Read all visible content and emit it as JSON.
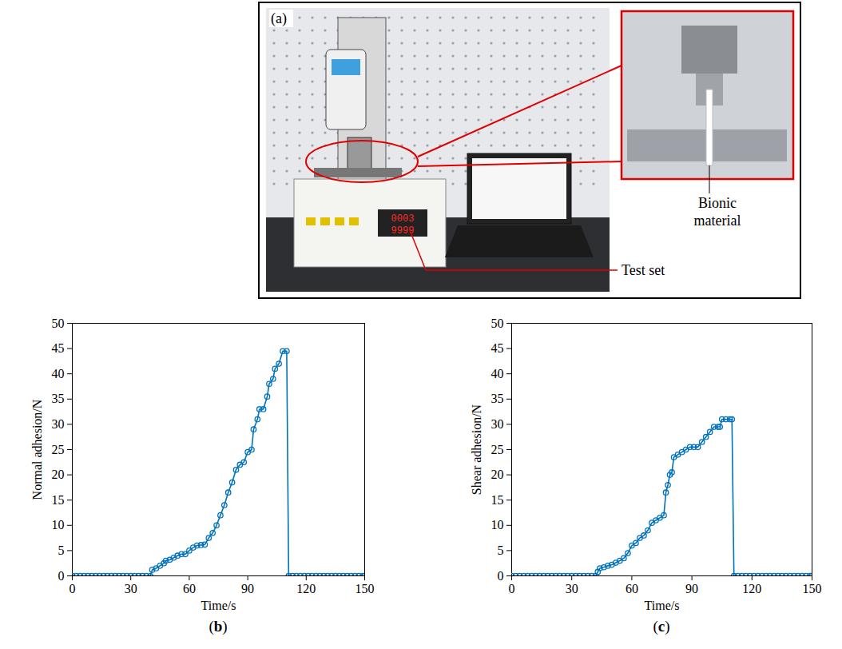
{
  "panel_a": {
    "label": "(a)",
    "annotations": [
      "Bionic material",
      "Test set"
    ],
    "display": [
      "0003",
      "9999"
    ]
  },
  "chart_data": [
    {
      "type": "line",
      "title": "(b)",
      "x_label": "Time/s",
      "y_label": "Normal adhesion/N",
      "xlim": [
        0,
        150
      ],
      "xticks": [
        0,
        30,
        60,
        90,
        120,
        150
      ],
      "ylim": [
        0,
        50
      ],
      "yticks": [
        0,
        5,
        10,
        15,
        20,
        25,
        30,
        35,
        40,
        45,
        50
      ],
      "grid": false,
      "color": "#0072bd",
      "marker": "circle",
      "line_style": "solid",
      "x": [
        0,
        2,
        4,
        6,
        8,
        10,
        12,
        14,
        16,
        18,
        20,
        22,
        24,
        26,
        28,
        30,
        32,
        34,
        36,
        38,
        40,
        41,
        43,
        45,
        47,
        48,
        50,
        52,
        54,
        56,
        58,
        60,
        62,
        64,
        66,
        68,
        70,
        72,
        74,
        76,
        78,
        80,
        82,
        84,
        86,
        88,
        90,
        92,
        93,
        95,
        96,
        98,
        100,
        101,
        103,
        104,
        106,
        108,
        110,
        111,
        113,
        115,
        117,
        119,
        121,
        123,
        125,
        127,
        129,
        131,
        133,
        135,
        137,
        139,
        141,
        143,
        145,
        147,
        149,
        150
      ],
      "values": [
        0,
        0,
        0,
        0,
        0,
        0,
        0,
        0,
        0,
        0,
        0,
        0,
        0,
        0,
        0,
        0,
        0,
        0,
        0,
        0,
        0,
        1.2,
        1.5,
        2,
        2.5,
        3,
        3.2,
        3.6,
        4,
        4.3,
        4.3,
        5,
        5.6,
        6,
        6.1,
        6.2,
        7.5,
        8.5,
        10,
        12,
        14,
        16.5,
        18.5,
        21,
        22,
        22.5,
        24.5,
        25,
        29,
        31,
        33,
        33,
        35.5,
        38,
        39,
        41,
        42,
        44.5,
        44.5,
        0,
        0,
        0,
        0,
        0,
        0,
        0,
        0,
        0,
        0,
        0,
        0,
        0,
        0,
        0,
        0,
        0,
        0,
        0,
        0,
        0
      ]
    },
    {
      "type": "line",
      "title": "(c)",
      "x_label": "Time/s",
      "y_label": "Shear adhesion/N",
      "xlim": [
        0,
        150
      ],
      "xticks": [
        0,
        30,
        60,
        90,
        120,
        150
      ],
      "ylim": [
        0,
        50
      ],
      "yticks": [
        0,
        5,
        10,
        15,
        20,
        25,
        30,
        35,
        40,
        45,
        50
      ],
      "grid": false,
      "color": "#0072bd",
      "marker": "circle",
      "line_style": "solid",
      "x": [
        0,
        2,
        4,
        6,
        8,
        10,
        12,
        14,
        16,
        18,
        20,
        22,
        24,
        26,
        28,
        30,
        32,
        34,
        36,
        38,
        40,
        42,
        43,
        44,
        46,
        48,
        50,
        52,
        54,
        56,
        58,
        60,
        62,
        64,
        66,
        68,
        70,
        72,
        74,
        76,
        77,
        78,
        79,
        80,
        81,
        83,
        85,
        87,
        89,
        91,
        93,
        95,
        97,
        99,
        101,
        103,
        104,
        105,
        107,
        109,
        110,
        111,
        113,
        115,
        117,
        119,
        121,
        123,
        125,
        127,
        129,
        131,
        133,
        135,
        137,
        139,
        141,
        143,
        145,
        147,
        149,
        150
      ],
      "values": [
        0,
        0,
        0,
        0,
        0,
        0,
        0,
        0,
        0,
        0,
        0,
        0,
        0,
        0,
        0,
        0,
        0,
        0,
        0,
        0,
        0,
        0,
        0.8,
        1.5,
        1.7,
        2,
        2.2,
        2.6,
        3,
        3.5,
        4.5,
        6,
        6.5,
        7.5,
        8,
        9,
        10.5,
        11,
        11.5,
        12,
        16.5,
        18,
        20,
        20.5,
        23.5,
        24,
        24.5,
        25,
        25.5,
        25.5,
        25.5,
        26.5,
        27.5,
        28.5,
        29.5,
        29.5,
        29.5,
        31,
        31,
        31,
        31,
        0,
        0,
        0,
        0,
        0,
        0,
        0,
        0,
        0,
        0,
        0,
        0,
        0,
        0,
        0,
        0,
        0,
        0,
        0,
        0,
        0
      ]
    }
  ]
}
